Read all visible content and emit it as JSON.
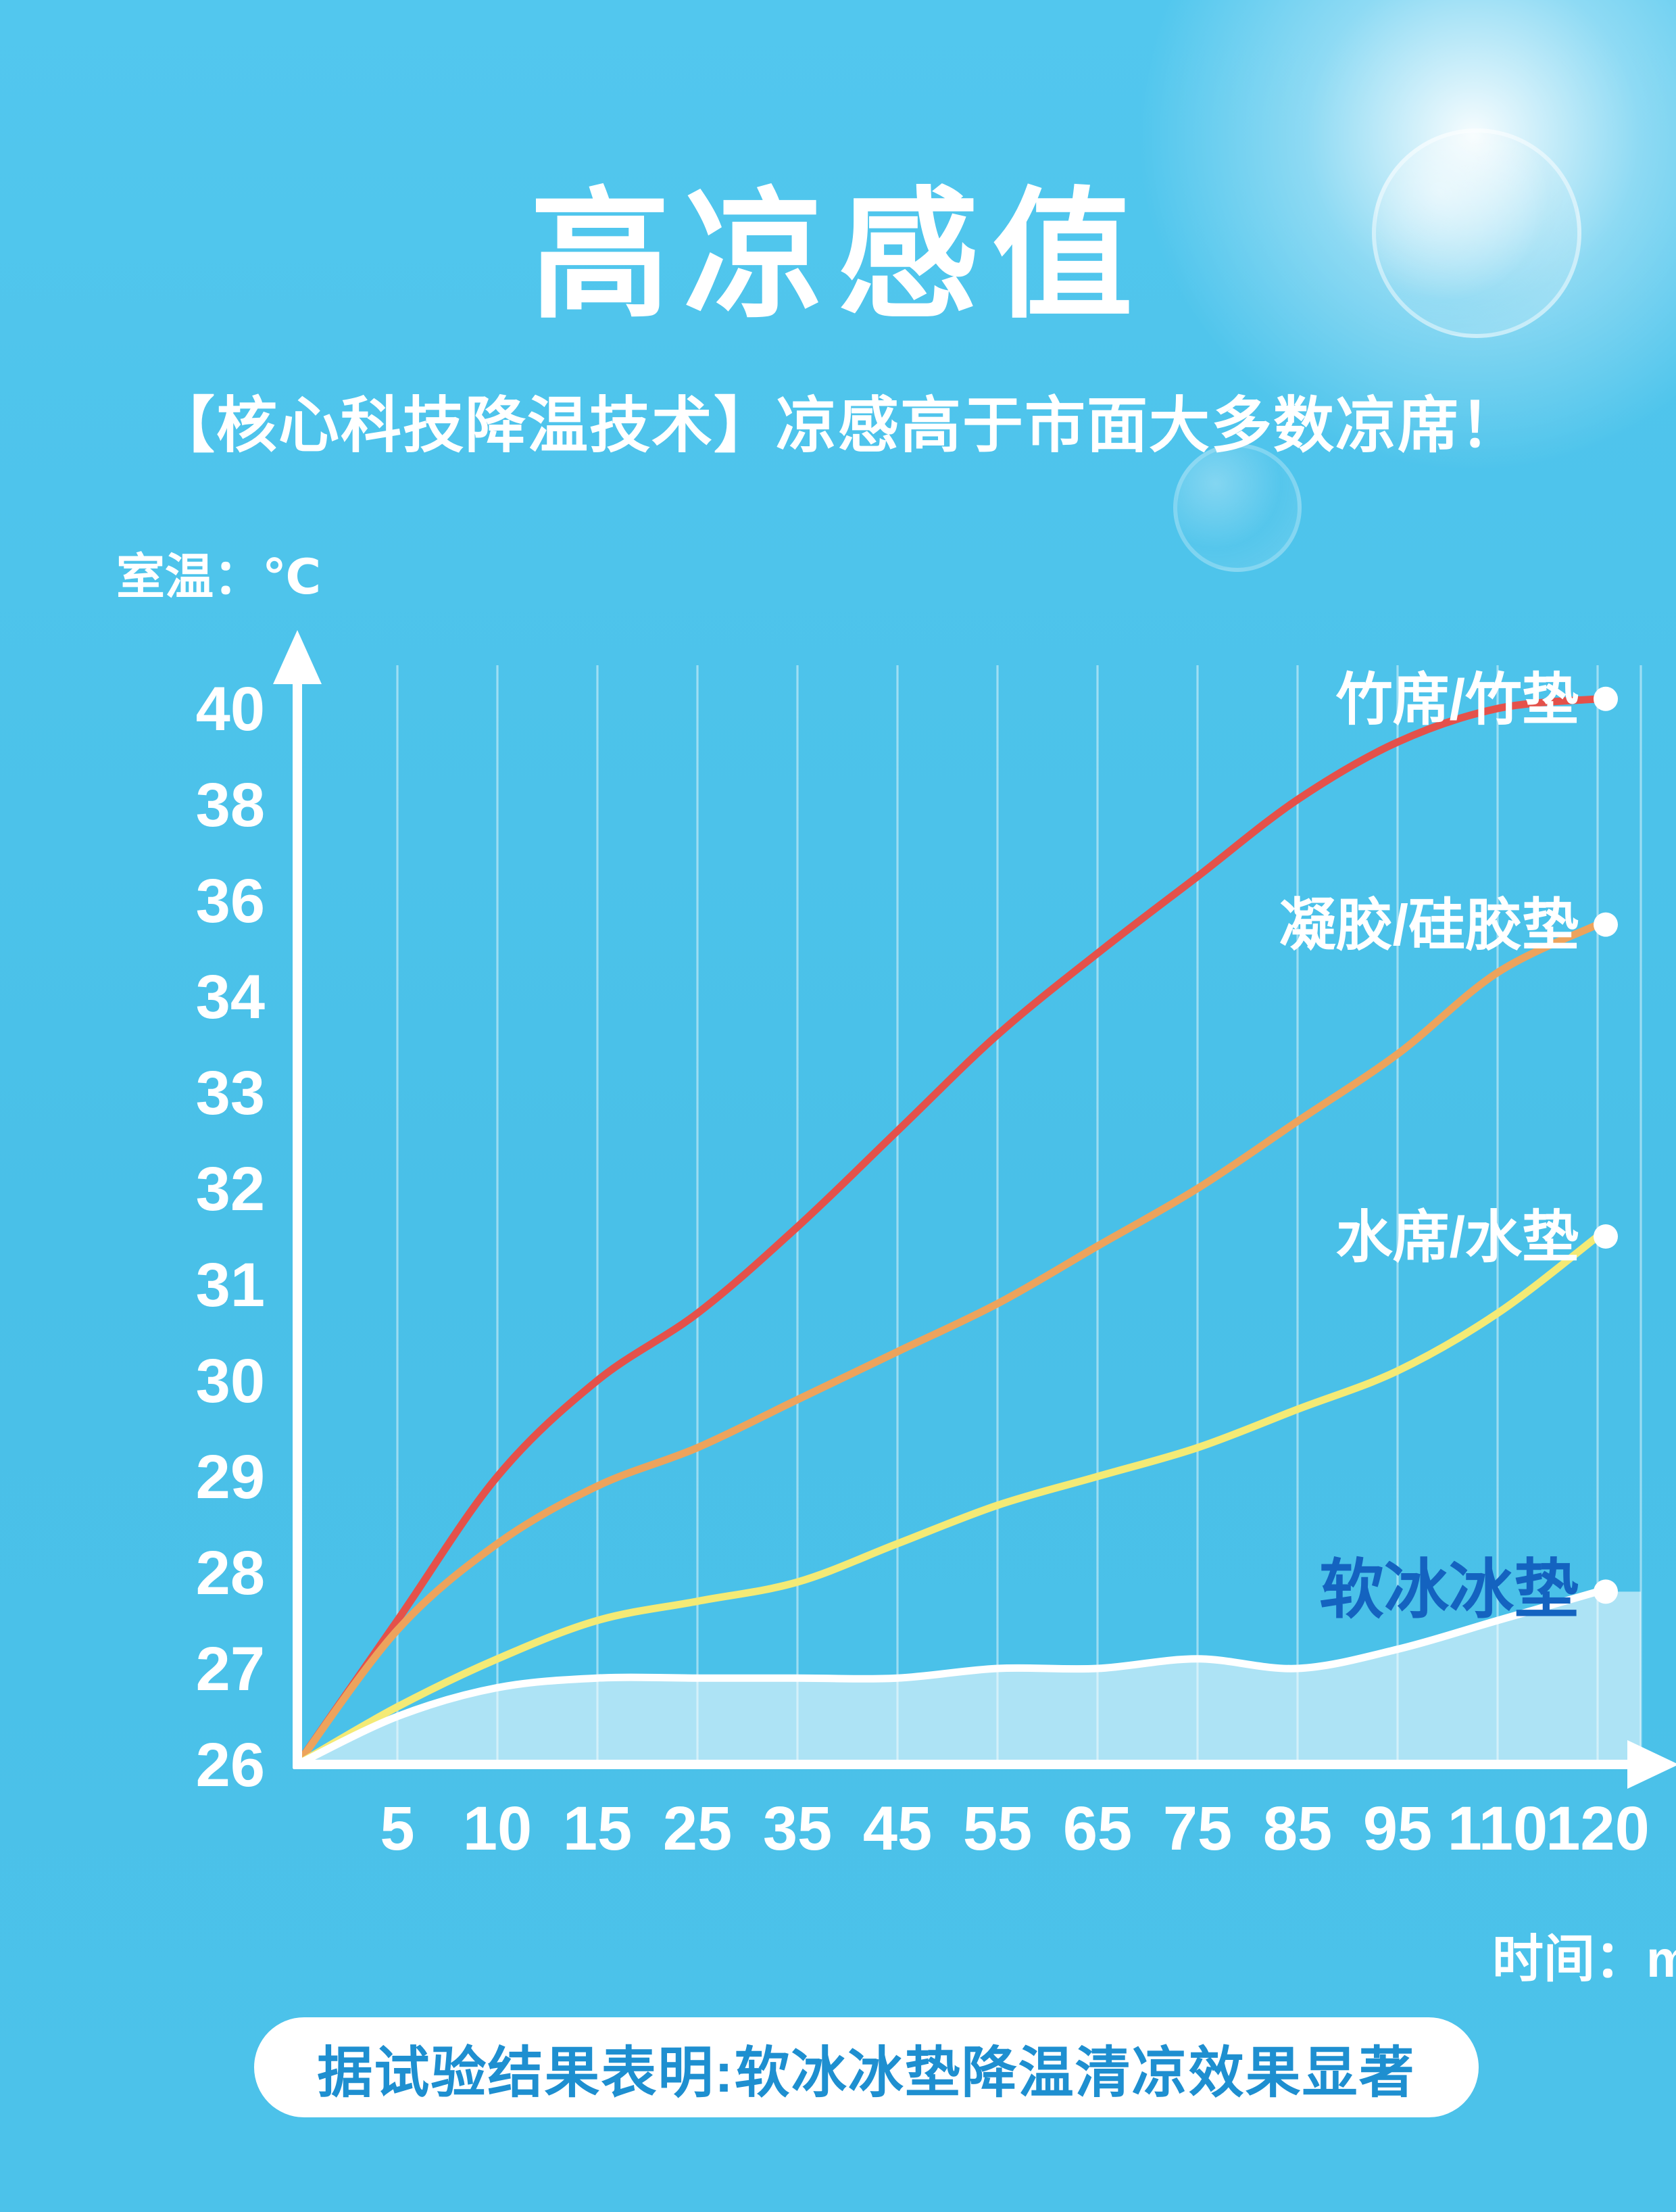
{
  "page": {
    "bg_color": "#4bc1e9",
    "title": "高凉感值",
    "subtitle": "【核心科技降温技术】凉感高于市面大多数凉席！",
    "footer_note": "据试验结果表明:软冰冰垫降温清凉效果显著",
    "footer_text_color": "#1e8fd0"
  },
  "chart_data": {
    "type": "line",
    "title": "",
    "x_label": "时间：m",
    "y_label": "室温：℃",
    "x_values": [
      0,
      5,
      10,
      15,
      25,
      35,
      45,
      55,
      65,
      75,
      85,
      95,
      110,
      120
    ],
    "x_ticks": [
      5,
      10,
      15,
      25,
      35,
      45,
      55,
      65,
      75,
      85,
      95,
      110,
      120
    ],
    "y_ticks": [
      26,
      27,
      28,
      29,
      30,
      31,
      32,
      33,
      34,
      36,
      38,
      40
    ],
    "ylim": [
      26,
      40.5
    ],
    "grid": true,
    "legend_position": "inline-right",
    "axis_color": "#ffffff",
    "grid_color": "rgba(255,255,255,0.45)",
    "series": [
      {
        "name": "竹席/竹垫",
        "color": "#e4514a",
        "values": [
          26,
          27.5,
          29,
          30,
          30.7,
          31.6,
          32.6,
          33.6,
          34.9,
          36.5,
          38.1,
          39.3,
          40,
          40.2
        ]
      },
      {
        "name": "凝胶/硅胶垫",
        "color": "#eda35c",
        "values": [
          26,
          27.4,
          28.3,
          28.9,
          29.3,
          29.8,
          30.3,
          30.8,
          31.4,
          32,
          32.7,
          33.4,
          34.5,
          35.5
        ]
      },
      {
        "name": "水席/水垫",
        "color": "#f4ea75",
        "values": [
          26,
          26.6,
          27.1,
          27.5,
          27.7,
          27.9,
          28.3,
          28.7,
          29,
          29.3,
          29.7,
          30.1,
          30.7,
          31.5
        ]
      },
      {
        "name": "软冰冰垫",
        "color": "#ffffff",
        "area_fill": "rgba(255,255,255,0.55)",
        "label_color": "#1463c0",
        "label_bold": true,
        "values": [
          26,
          26.5,
          26.8,
          26.9,
          26.9,
          26.9,
          26.9,
          27,
          27,
          27.1,
          27,
          27.2,
          27.5,
          27.8
        ]
      }
    ]
  }
}
